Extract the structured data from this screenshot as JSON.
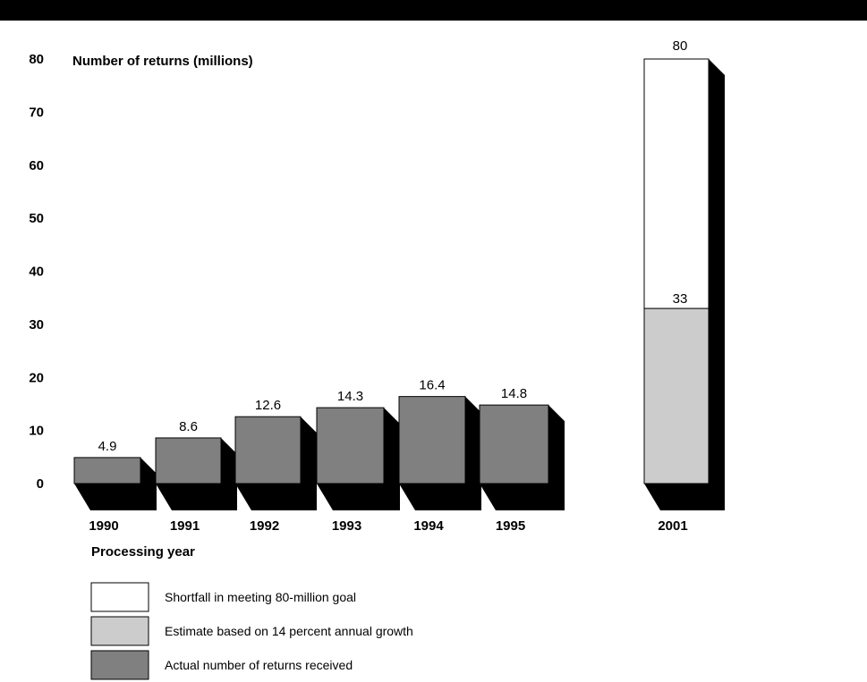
{
  "chart_data": {
    "type": "bar",
    "ylabel": "Number of returns (millions)",
    "xlabel": "Processing year",
    "ylim": [
      0,
      80
    ],
    "yticks": [
      "0",
      "10",
      "20",
      "30",
      "40",
      "50",
      "60",
      "70",
      "80"
    ],
    "categories": [
      "1990",
      "1991",
      "1992",
      "1993",
      "1994",
      "1995",
      "2001"
    ],
    "series": [
      {
        "name": "Actual number of returns received",
        "values": [
          4.9,
          8.6,
          12.6,
          14.3,
          16.4,
          14.8,
          null
        ],
        "color": "#808080"
      },
      {
        "name": "Estimate based on 14 percent annual growth",
        "values": [
          null,
          null,
          null,
          null,
          null,
          null,
          33
        ],
        "color": "#cccccc"
      },
      {
        "name": "Shortfall in meeting 80-million goal",
        "values": [
          null,
          null,
          null,
          null,
          null,
          null,
          47
        ],
        "color": "#ffffff"
      }
    ],
    "data_labels": [
      "4.9",
      "8.6",
      "12.6",
      "14.3",
      "16.4",
      "14.8",
      "33",
      "80"
    ],
    "grid": false,
    "legend_position": "bottom"
  }
}
